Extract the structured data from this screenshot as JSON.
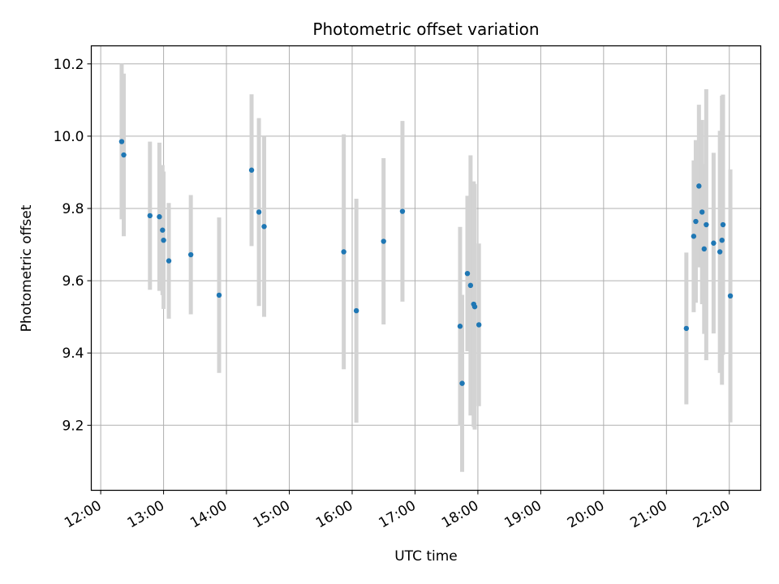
{
  "chart_data": {
    "type": "scatter",
    "title": "Photometric offset variation",
    "xlabel": "UTC time",
    "ylabel": "Photometric offset",
    "xlim": [
      "11:51",
      "22:30"
    ],
    "ylim": [
      9.02,
      10.25
    ],
    "grid": true,
    "x_ticks": [
      "12:00",
      "13:00",
      "14:00",
      "15:00",
      "16:00",
      "17:00",
      "18:00",
      "19:00",
      "20:00",
      "21:00",
      "22:00"
    ],
    "y_ticks": [
      9.2,
      9.4,
      9.6,
      9.8,
      10.0,
      10.2
    ],
    "y_tick_labels": [
      "9.2",
      "9.4",
      "9.6",
      "9.8",
      "10.0",
      "10.2"
    ],
    "marker_color": "#1f77b4",
    "errorbar_color": "#d3d3d3",
    "series": [
      {
        "points": [
          {
            "x": "12:20",
            "y": 9.985,
            "err": 0.215
          },
          {
            "x": "12:22",
            "y": 9.948,
            "err": 0.225
          },
          {
            "x": "12:47",
            "y": 9.78,
            "err": 0.205
          },
          {
            "x": "12:56",
            "y": 9.777,
            "err": 0.205
          },
          {
            "x": "12:59",
            "y": 9.74,
            "err": 0.18
          },
          {
            "x": "13:00",
            "y": 9.712,
            "err": 0.19
          },
          {
            "x": "13:05",
            "y": 9.655,
            "err": 0.16
          },
          {
            "x": "13:26",
            "y": 9.672,
            "err": 0.165
          },
          {
            "x": "13:53",
            "y": 9.56,
            "err": 0.215
          },
          {
            "x": "14:24",
            "y": 9.906,
            "err": 0.21
          },
          {
            "x": "14:31",
            "y": 9.79,
            "err": 0.26
          },
          {
            "x": "14:36",
            "y": 9.75,
            "err": 0.25
          },
          {
            "x": "15:52",
            "y": 9.68,
            "err": 0.325
          },
          {
            "x": "16:04",
            "y": 9.517,
            "err": 0.31
          },
          {
            "x": "16:30",
            "y": 9.709,
            "err": 0.23
          },
          {
            "x": "16:48",
            "y": 9.792,
            "err": 0.25
          },
          {
            "x": "17:43",
            "y": 9.474,
            "err": 0.275
          },
          {
            "x": "17:45",
            "y": 9.316,
            "err": 0.245
          },
          {
            "x": "17:50",
            "y": 9.62,
            "err": 0.215
          },
          {
            "x": "17:53",
            "y": 9.587,
            "err": 0.36
          },
          {
            "x": "17:56",
            "y": 9.535,
            "err": 0.34
          },
          {
            "x": "17:57",
            "y": 9.528,
            "err": 0.34
          },
          {
            "x": "18:01",
            "y": 9.478,
            "err": 0.225
          },
          {
            "x": "21:19",
            "y": 9.468,
            "err": 0.21
          },
          {
            "x": "21:26",
            "y": 9.723,
            "err": 0.21
          },
          {
            "x": "21:28",
            "y": 9.764,
            "err": 0.225
          },
          {
            "x": "21:31",
            "y": 9.862,
            "err": 0.225
          },
          {
            "x": "21:34",
            "y": 9.79,
            "err": 0.255
          },
          {
            "x": "21:36",
            "y": 9.688,
            "err": 0.235
          },
          {
            "x": "21:38",
            "y": 9.755,
            "err": 0.375
          },
          {
            "x": "21:45",
            "y": 9.704,
            "err": 0.25
          },
          {
            "x": "21:51",
            "y": 9.68,
            "err": 0.335
          },
          {
            "x": "21:53",
            "y": 9.712,
            "err": 0.4
          },
          {
            "x": "21:54",
            "y": 9.755,
            "err": 0.36
          },
          {
            "x": "22:01",
            "y": 9.558,
            "err": 0.35
          }
        ]
      }
    ]
  }
}
